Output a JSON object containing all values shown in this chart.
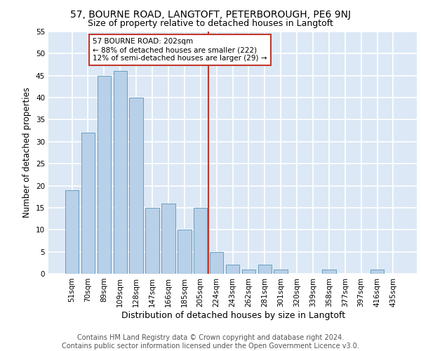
{
  "title1": "57, BOURNE ROAD, LANGTOFT, PETERBOROUGH, PE6 9NJ",
  "title2": "Size of property relative to detached houses in Langtoft",
  "xlabel": "Distribution of detached houses by size in Langtoft",
  "ylabel": "Number of detached properties",
  "categories": [
    "51sqm",
    "70sqm",
    "89sqm",
    "109sqm",
    "128sqm",
    "147sqm",
    "166sqm",
    "185sqm",
    "205sqm",
    "224sqm",
    "243sqm",
    "262sqm",
    "281sqm",
    "301sqm",
    "320sqm",
    "339sqm",
    "358sqm",
    "377sqm",
    "397sqm",
    "416sqm",
    "435sqm"
  ],
  "values": [
    19,
    32,
    45,
    46,
    40,
    15,
    16,
    10,
    15,
    5,
    2,
    1,
    2,
    1,
    0,
    0,
    1,
    0,
    0,
    1,
    0
  ],
  "bar_color": "#b8d0e8",
  "bar_edge_color": "#6a9fc0",
  "vline_x": 8.5,
  "vline_color": "#c0392b",
  "annotation_text": "57 BOURNE ROAD: 202sqm\n← 88% of detached houses are smaller (222)\n12% of semi-detached houses are larger (29) →",
  "annotation_box_color": "white",
  "annotation_box_edge_color": "#c0392b",
  "ylim": [
    0,
    55
  ],
  "yticks": [
    0,
    5,
    10,
    15,
    20,
    25,
    30,
    35,
    40,
    45,
    50,
    55
  ],
  "background_color": "#dce8f5",
  "grid_color": "white",
  "footer_line1": "Contains HM Land Registry data © Crown copyright and database right 2024.",
  "footer_line2": "Contains public sector information licensed under the Open Government Licence v3.0.",
  "title1_fontsize": 10,
  "title2_fontsize": 9,
  "xlabel_fontsize": 9,
  "ylabel_fontsize": 8.5,
  "tick_fontsize": 7.5,
  "footer_fontsize": 7
}
